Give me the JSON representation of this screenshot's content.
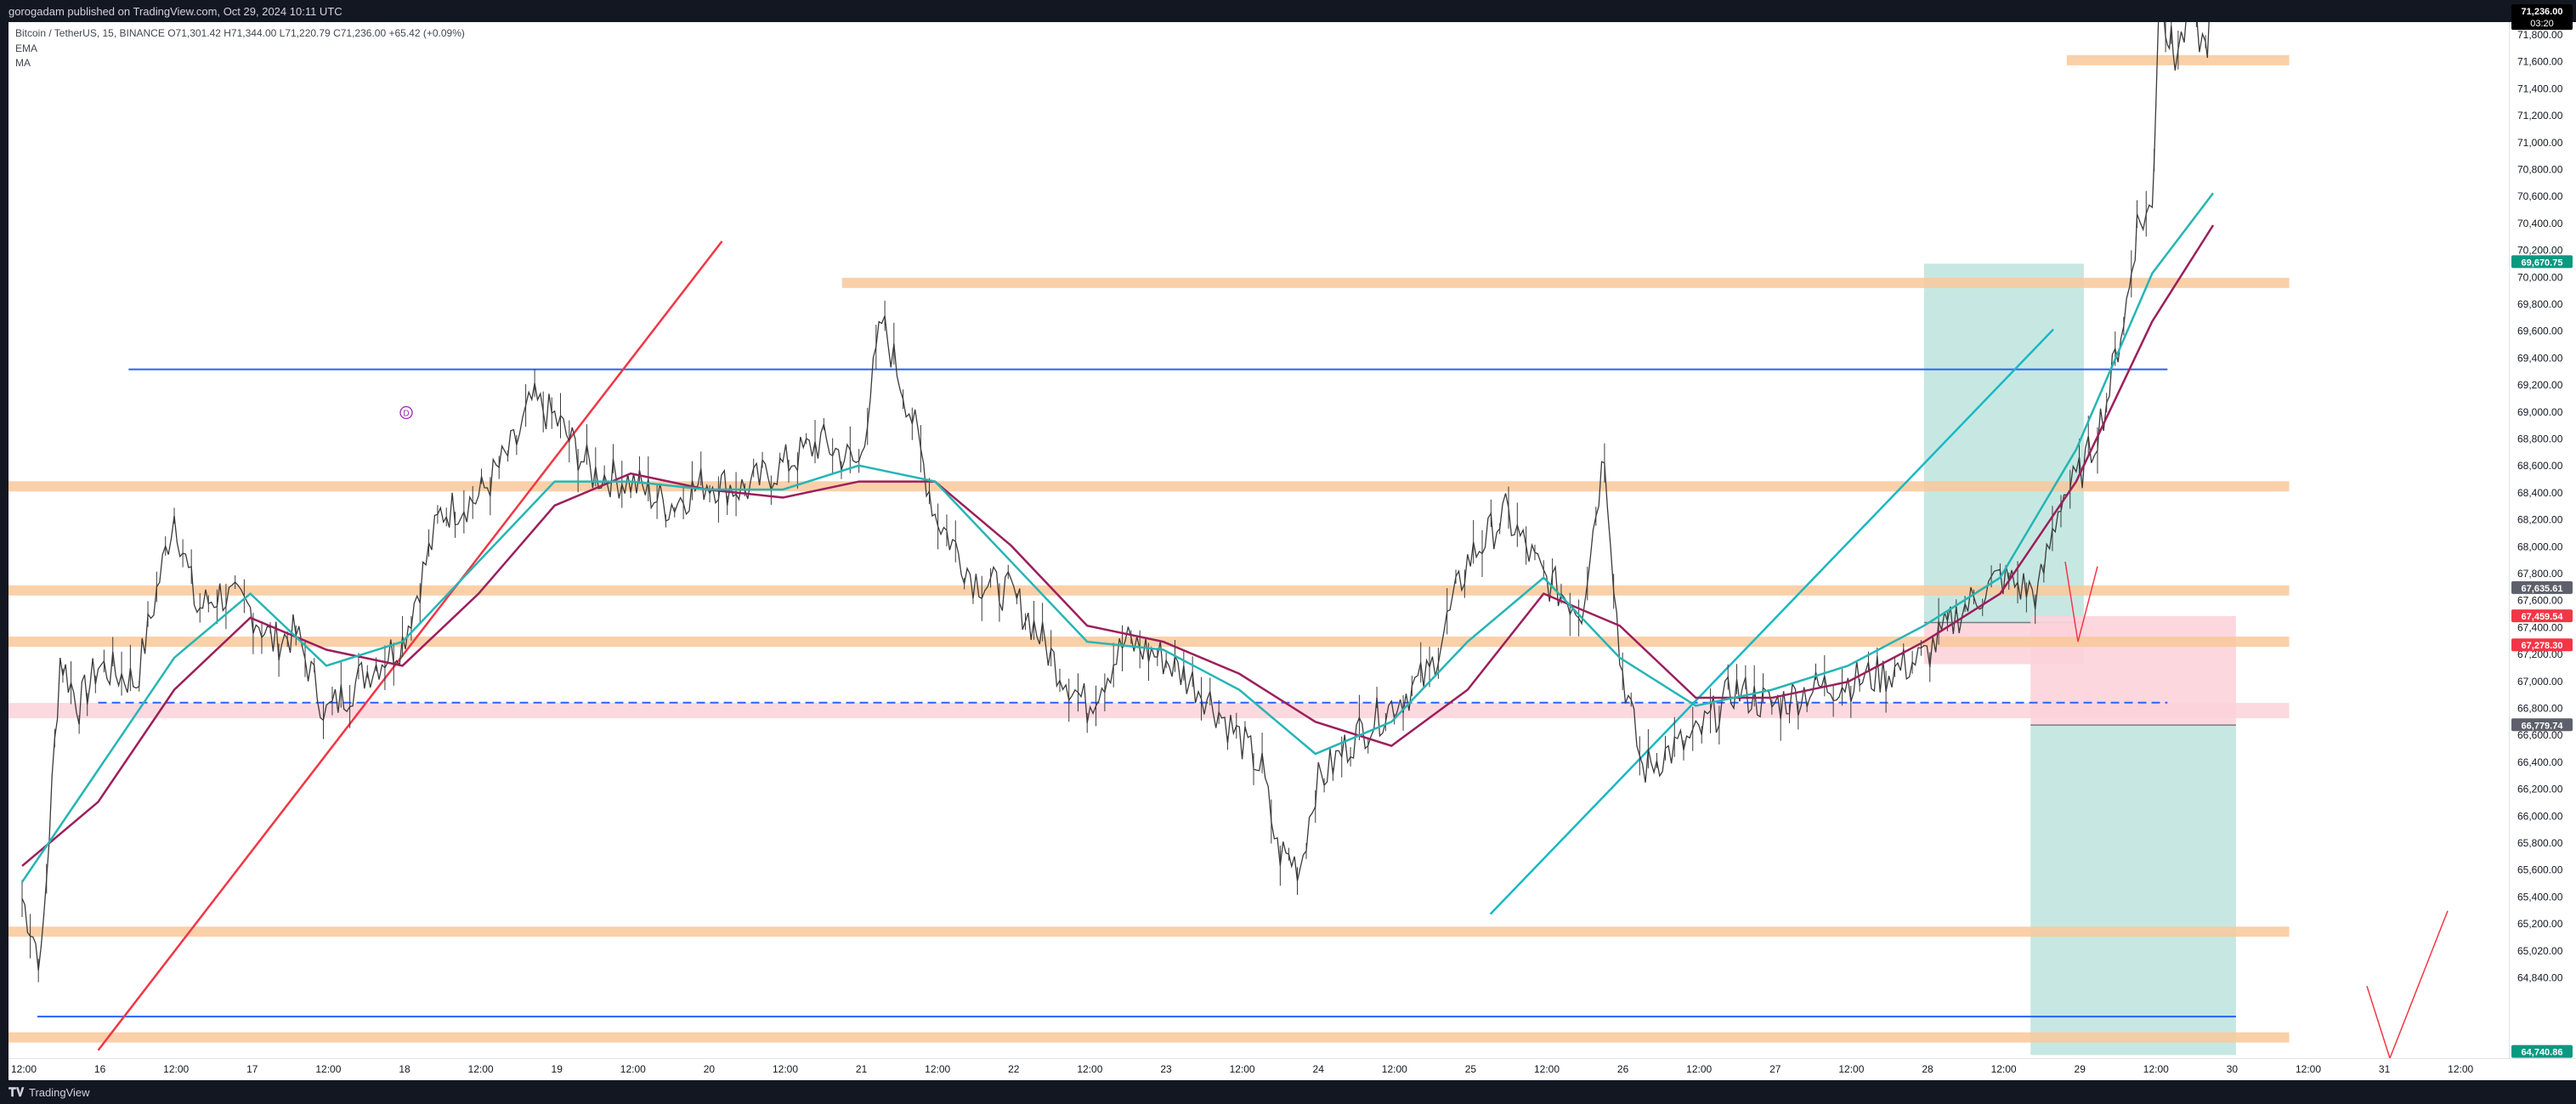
{
  "header": {
    "text": "gorogadam published on TradingView.com, Oct 29, 2024 10:11 UTC"
  },
  "legend": {
    "symbol": "Bitcoin / TetherUS, 15, BINANCE",
    "open": "O71,301.42",
    "high": "H71,344.00",
    "low": "L71,220.79",
    "close": "C71,236.00",
    "change": "+65.42 (+0.09%)",
    "ema_label": "EMA",
    "ma_label": "MA"
  },
  "footer": {
    "brand": "TradingView",
    "logo_icon": "tradingview-logo-icon"
  },
  "colors": {
    "candle": "#3b3b3b",
    "ema": "#26b5b5",
    "ma": "#9c1f5c",
    "zone_orange": "#f9c89a",
    "zone_pink": "#fbd2d9",
    "blue_line": "#2962ff",
    "red_line": "#f23645",
    "teal_line": "#19b8c4",
    "target_fill": "#c1e6df",
    "stop_fill": "#fcd3da",
    "last_price_label": "#000000",
    "green_label": "#089981",
    "red_label": "#f23645",
    "gray_label": "#5d606b"
  },
  "chart_data": {
    "type": "candlestick",
    "symbol": "Bitcoin / TetherUS",
    "interval": "15",
    "exchange": "BINANCE",
    "ylim": [
      64600,
      71900
    ],
    "price_ticks": [
      "71,800.00",
      "71,600.00",
      "71,400.00",
      "71,200.00",
      "71,000.00",
      "70,800.00",
      "70,600.00",
      "70,400.00",
      "70,200.00",
      "70,000.00",
      "69,800.00",
      "69,600.00",
      "69,400.00",
      "69,200.00",
      "69,000.00",
      "68,800.00",
      "68,600.00",
      "68,400.00",
      "68,200.00",
      "68,000.00",
      "67,800.00",
      "67,600.00",
      "67,400.00",
      "67,200.00",
      "67,000.00",
      "66,800.00",
      "66,600.00",
      "66,400.00",
      "66,200.00",
      "66,000.00",
      "65,800.00",
      "65,600.00",
      "65,400.00",
      "65,200.00",
      "65,020.00",
      "64,840.00"
    ],
    "time_ticks": [
      "12:00",
      "16",
      "12:00",
      "17",
      "12:00",
      "18",
      "12:00",
      "19",
      "12:00",
      "20",
      "12:00",
      "21",
      "12:00",
      "22",
      "12:00",
      "23",
      "12:00",
      "24",
      "12:00",
      "25",
      "12:00",
      "26",
      "12:00",
      "27",
      "12:00",
      "28",
      "12:00",
      "29",
      "12:00",
      "30",
      "12:00",
      "31",
      "12:00"
    ],
    "price_path": [
      [
        0,
        65700
      ],
      [
        0.25,
        65300
      ],
      [
        0.5,
        67200
      ],
      [
        0.75,
        66900
      ],
      [
        1,
        67150
      ],
      [
        1.5,
        67050
      ],
      [
        2,
        68100
      ],
      [
        2.3,
        67500
      ],
      [
        2.6,
        67600
      ],
      [
        3,
        67500
      ],
      [
        3.3,
        67300
      ],
      [
        3.6,
        67350
      ],
      [
        4,
        66850
      ],
      [
        4.5,
        67100
      ],
      [
        5,
        67300
      ],
      [
        5.5,
        68100
      ],
      [
        6,
        68200
      ],
      [
        6.5,
        68550
      ],
      [
        6.7,
        68800
      ],
      [
        7,
        68700
      ],
      [
        7.5,
        68350
      ],
      [
        8,
        68300
      ],
      [
        8.5,
        68150
      ],
      [
        9,
        68300
      ],
      [
        9.5,
        68250
      ],
      [
        10,
        68400
      ],
      [
        10.5,
        68550
      ],
      [
        11,
        68400
      ],
      [
        11.3,
        69300
      ],
      [
        11.7,
        68700
      ],
      [
        12,
        68100
      ],
      [
        12.5,
        67700
      ],
      [
        13,
        67600
      ],
      [
        13.3,
        67400
      ],
      [
        13.6,
        67150
      ],
      [
        14,
        66900
      ],
      [
        14.5,
        67300
      ],
      [
        15,
        67200
      ],
      [
        15.5,
        67000
      ],
      [
        16,
        66700
      ],
      [
        16.3,
        66500
      ],
      [
        16.5,
        66000
      ],
      [
        16.8,
        65900
      ],
      [
        17,
        66400
      ],
      [
        17.5,
        66700
      ],
      [
        18,
        66900
      ],
      [
        18.5,
        67100
      ],
      [
        19,
        67800
      ],
      [
        19.5,
        68100
      ],
      [
        20,
        67700
      ],
      [
        20.5,
        67500
      ],
      [
        20.8,
        68500
      ],
      [
        21,
        67200
      ],
      [
        21.3,
        66500
      ],
      [
        21.6,
        66600
      ],
      [
        22,
        66700
      ],
      [
        22.5,
        67000
      ],
      [
        23,
        66900
      ],
      [
        23.5,
        67000
      ],
      [
        24,
        67050
      ],
      [
        24.5,
        67100
      ],
      [
        25,
        67200
      ],
      [
        25.5,
        67500
      ],
      [
        26,
        67700
      ],
      [
        26.5,
        67600
      ],
      [
        26.8,
        68200
      ],
      [
        27,
        68300
      ],
      [
        27.2,
        68500
      ],
      [
        27.4,
        68800
      ],
      [
        27.7,
        69500
      ],
      [
        27.8,
        69900
      ],
      [
        28,
        70000
      ],
      [
        28.1,
        71500
      ],
      [
        28.2,
        71100
      ],
      [
        28.3,
        70950
      ],
      [
        28.5,
        71200
      ],
      [
        28.7,
        71000
      ],
      [
        28.8,
        71236
      ]
    ],
    "ema": [
      [
        0,
        65800
      ],
      [
        1,
        66500
      ],
      [
        2,
        67200
      ],
      [
        3,
        67600
      ],
      [
        4,
        67150
      ],
      [
        5,
        67300
      ],
      [
        6,
        67800
      ],
      [
        7,
        68300
      ],
      [
        8,
        68300
      ],
      [
        9,
        68250
      ],
      [
        10,
        68250
      ],
      [
        11,
        68400
      ],
      [
        12,
        68300
      ],
      [
        13,
        67800
      ],
      [
        14,
        67300
      ],
      [
        15,
        67250
      ],
      [
        16,
        67000
      ],
      [
        17,
        66600
      ],
      [
        18,
        66800
      ],
      [
        19,
        67300
      ],
      [
        20,
        67700
      ],
      [
        21,
        67200
      ],
      [
        22,
        66900
      ],
      [
        23,
        67000
      ],
      [
        24,
        67150
      ],
      [
        25,
        67400
      ],
      [
        26,
        67700
      ],
      [
        27,
        68500
      ],
      [
        28,
        69600
      ],
      [
        28.8,
        70100
      ]
    ],
    "ma": [
      [
        0,
        65900
      ],
      [
        1,
        66300
      ],
      [
        2,
        67000
      ],
      [
        3,
        67450
      ],
      [
        4,
        67250
      ],
      [
        5,
        67150
      ],
      [
        6,
        67600
      ],
      [
        7,
        68150
      ],
      [
        8,
        68350
      ],
      [
        9,
        68250
      ],
      [
        10,
        68200
      ],
      [
        11,
        68300
      ],
      [
        12,
        68300
      ],
      [
        13,
        67900
      ],
      [
        14,
        67400
      ],
      [
        15,
        67300
      ],
      [
        16,
        67100
      ],
      [
        17,
        66800
      ],
      [
        18,
        66650
      ],
      [
        19,
        67000
      ],
      [
        20,
        67600
      ],
      [
        21,
        67400
      ],
      [
        22,
        66950
      ],
      [
        23,
        66950
      ],
      [
        24,
        67050
      ],
      [
        25,
        67300
      ],
      [
        26,
        67600
      ],
      [
        27,
        68300
      ],
      [
        28,
        69300
      ],
      [
        28.8,
        69900
      ]
    ],
    "zones": [
      {
        "price": 70930,
        "start": 27.1,
        "end": 29.8,
        "color": "orange"
      },
      {
        "price": 69540,
        "start": 11.0,
        "end": 29.8,
        "color": "orange"
      },
      {
        "price": 68270,
        "start": 0,
        "end": 29.8,
        "color": "orange"
      },
      {
        "price": 67620,
        "start": 0,
        "end": 29.8,
        "color": "orange"
      },
      {
        "price": 67300,
        "start": 0,
        "end": 29.8,
        "color": "orange"
      },
      {
        "price": 66870,
        "start": 0,
        "end": 29.8,
        "color": "pink"
      },
      {
        "price": 65490,
        "start": 0,
        "end": 29.8,
        "color": "orange"
      },
      {
        "price": 64830,
        "start": 0,
        "end": 29.8,
        "color": "orange"
      }
    ],
    "lines": [
      {
        "kind": "hline",
        "price": 69000,
        "start": 1.4,
        "end": 28.2,
        "color": "blue"
      },
      {
        "kind": "hline-dashed",
        "price": 66920,
        "start": 1.0,
        "end": 28.2,
        "color": "blue"
      },
      {
        "kind": "hline",
        "price": 64960,
        "start": 0.2,
        "end": 29.1,
        "color": "blue"
      },
      {
        "kind": "trend",
        "from": [
          1.0,
          64750
        ],
        "to": [
          9.2,
          69800
        ],
        "color": "red"
      },
      {
        "kind": "trend",
        "from": [
          19.3,
          65600
        ],
        "to": [
          26.7,
          69250
        ],
        "color": "teal"
      }
    ],
    "positions": [
      {
        "type": "long",
        "entry": 67420,
        "target": 69660,
        "stop": 67160,
        "start": 25.0,
        "end": 27.1
      },
      {
        "type": "short",
        "entry": 66780,
        "target": 64720,
        "stop": 67460,
        "start": 26.4,
        "end": 29.1
      }
    ],
    "price_labels": [
      {
        "text": "71,236.00",
        "sub": "03:20",
        "price": 71236,
        "color": "black"
      },
      {
        "text": "69,670.75",
        "price": 69670,
        "color": "green"
      },
      {
        "text": "67,635.61",
        "price": 67635,
        "color": "gray"
      },
      {
        "text": "67,459.54",
        "price": 67459,
        "color": "red"
      },
      {
        "text": "67,278.30",
        "price": 67278,
        "color": "red"
      },
      {
        "text": "66,779.74",
        "price": 66779,
        "color": "gray"
      },
      {
        "text": "64,740.86",
        "price": 64740,
        "color": "green"
      }
    ],
    "annotation_marker": "D"
  }
}
